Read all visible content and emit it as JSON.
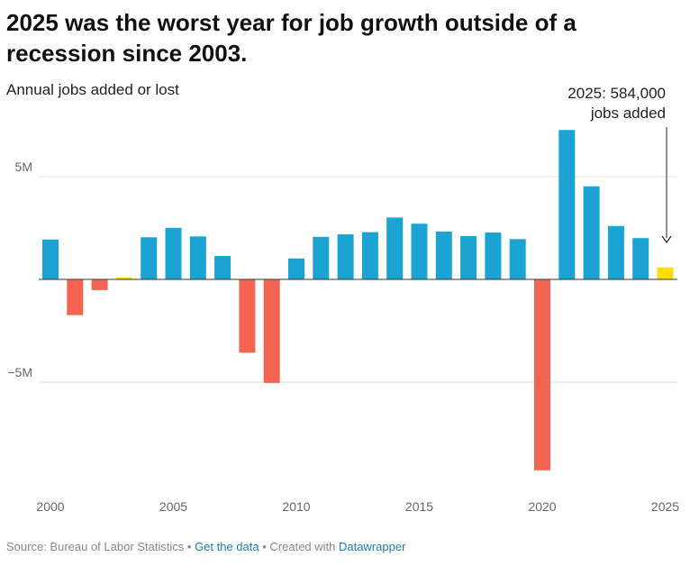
{
  "header": {
    "title": "2025 was the worst year for job growth outside of a recession since 2003.",
    "subtitle": "Annual jobs added or lost"
  },
  "footer": {
    "source": "Source: Bureau of Labor Statistics",
    "sep1": " • ",
    "get_data": "Get the data",
    "sep2": " • Created with ",
    "datawrapper": "Datawrapper"
  },
  "colors": {
    "positive": "#1ba3d4",
    "negative": "#f46453",
    "small_positive": "#ffdd00",
    "highlight": "#ffdd00"
  },
  "chart_data": {
    "type": "bar",
    "categories": [
      2000,
      2001,
      2002,
      2003,
      2004,
      2005,
      2006,
      2007,
      2008,
      2009,
      2010,
      2011,
      2012,
      2013,
      2014,
      2015,
      2016,
      2017,
      2018,
      2019,
      2020,
      2021,
      2022,
      2023,
      2024,
      2025
    ],
    "values": [
      1.94,
      -1.74,
      -0.52,
      0.1,
      2.05,
      2.51,
      2.09,
      1.14,
      -3.57,
      -5.04,
      1.02,
      2.07,
      2.19,
      2.3,
      3.01,
      2.71,
      2.33,
      2.11,
      2.28,
      1.96,
      -9.29,
      7.27,
      4.53,
      2.6,
      2.01,
      0.584
    ],
    "unit": "M",
    "ylim": [
      -10.0,
      7.7
    ],
    "y_ticks": [
      {
        "value": 5,
        "label": "5M"
      },
      {
        "value": -5,
        "label": "−5M"
      }
    ],
    "x_ticks": [
      2000,
      2005,
      2010,
      2015,
      2020,
      2025
    ],
    "grid": true,
    "annotation": {
      "year": 2025,
      "line1": "2025: 584,000",
      "line2": "jobs added"
    }
  }
}
